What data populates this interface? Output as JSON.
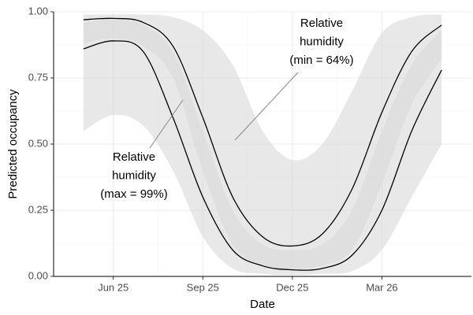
{
  "chart_data": {
    "type": "line",
    "x_label": "Date",
    "y_label": "Predicted occupancy",
    "x": [
      "2025-05",
      "2025-06",
      "2025-07",
      "2025-08",
      "2025-09",
      "2025-10",
      "2025-11",
      "2025-12",
      "2026-01",
      "2026-02",
      "2026-03",
      "2026-04",
      "2026-05"
    ],
    "xlim": [
      "2025-04",
      "2026-06"
    ],
    "xticks": [
      {
        "value": "2025-06",
        "label": "Jun 25"
      },
      {
        "value": "2025-09",
        "label": "Sep 25"
      },
      {
        "value": "2025-12",
        "label": "Dec 25"
      },
      {
        "value": "2026-03",
        "label": "Mar 26"
      }
    ],
    "ylim": [
      0,
      1
    ],
    "yticks": [
      {
        "value": 0,
        "label": "0.00"
      },
      {
        "value": 0.25,
        "label": "0.25"
      },
      {
        "value": 0.5,
        "label": "0.50"
      },
      {
        "value": 0.75,
        "label": "0.75"
      },
      {
        "value": 1,
        "label": "1.00"
      }
    ],
    "grid": true,
    "series": [
      {
        "color": "#000000",
        "band_color": "#d9d9d9",
        "values": [
          0.97,
          0.975,
          0.96,
          0.87,
          0.6,
          0.3,
          0.15,
          0.115,
          0.16,
          0.33,
          0.62,
          0.85,
          0.95
        ],
        "lower": [
          0.88,
          0.9,
          0.87,
          0.75,
          0.4,
          0.12,
          0.04,
          0.03,
          0.04,
          0.1,
          0.35,
          0.65,
          0.82
        ],
        "upper": [
          0.99,
          0.99,
          0.99,
          0.98,
          0.93,
          0.8,
          0.55,
          0.44,
          0.5,
          0.7,
          0.92,
          0.98,
          0.99
        ]
      },
      {
        "color": "#000000",
        "band_color": "#d9d9d9",
        "values": [
          0.86,
          0.89,
          0.85,
          0.6,
          0.3,
          0.1,
          0.04,
          0.025,
          0.03,
          0.08,
          0.25,
          0.55,
          0.78
        ],
        "lower": [
          0.55,
          0.61,
          0.57,
          0.4,
          0.15,
          0.03,
          0.01,
          0.005,
          0.01,
          0.02,
          0.1,
          0.3,
          0.5
        ],
        "upper": [
          0.96,
          0.97,
          0.95,
          0.85,
          0.55,
          0.25,
          0.12,
          0.1,
          0.12,
          0.25,
          0.55,
          0.8,
          0.93
        ]
      }
    ],
    "annotations": [
      {
        "lines": [
          "Relative",
          "humidity",
          "(min = 64%)"
        ]
      },
      {
        "lines": [
          "Relative",
          "humidity",
          "(max = 99%)"
        ]
      }
    ]
  }
}
